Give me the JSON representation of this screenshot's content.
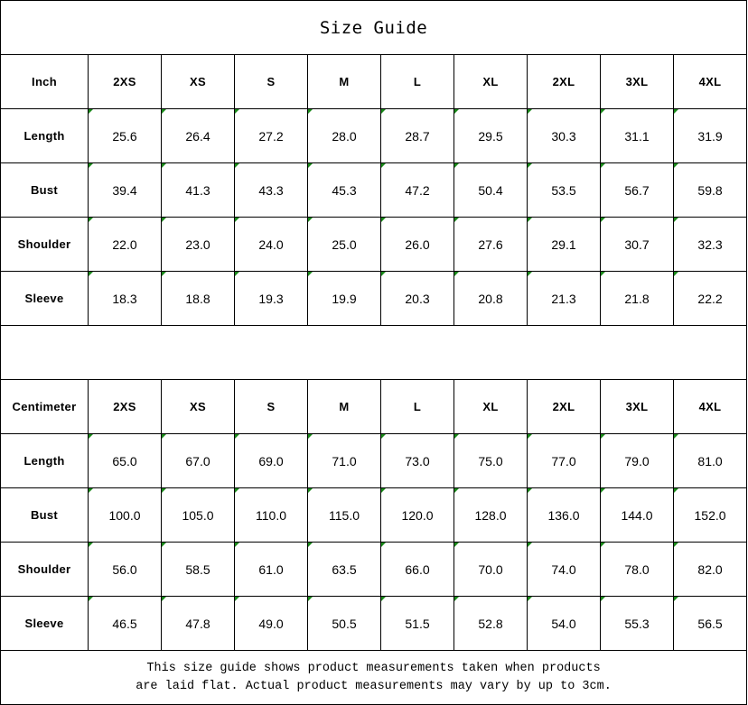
{
  "title": "Size Guide",
  "sizes": [
    "2XS",
    "XS",
    "S",
    "M",
    "L",
    "XL",
    "2XL",
    "3XL",
    "4XL"
  ],
  "indicator_color": "#1a8a1a",
  "tables": [
    {
      "unit": "Inch",
      "rows": [
        {
          "label": "Length",
          "values": [
            "25.6",
            "26.4",
            "27.2",
            "28.0",
            "28.7",
            "29.5",
            "30.3",
            "31.1",
            "31.9"
          ]
        },
        {
          "label": "Bust",
          "values": [
            "39.4",
            "41.3",
            "43.3",
            "45.3",
            "47.2",
            "50.4",
            "53.5",
            "56.7",
            "59.8"
          ]
        },
        {
          "label": "Shoulder",
          "values": [
            "22.0",
            "23.0",
            "24.0",
            "25.0",
            "26.0",
            "27.6",
            "29.1",
            "30.7",
            "32.3"
          ]
        },
        {
          "label": "Sleeve",
          "values": [
            "18.3",
            "18.8",
            "19.3",
            "19.9",
            "20.3",
            "20.8",
            "21.3",
            "21.8",
            "22.2"
          ]
        }
      ]
    },
    {
      "unit": "Centimeter",
      "rows": [
        {
          "label": "Length",
          "values": [
            "65.0",
            "67.0",
            "69.0",
            "71.0",
            "73.0",
            "75.0",
            "77.0",
            "79.0",
            "81.0"
          ]
        },
        {
          "label": "Bust",
          "values": [
            "100.0",
            "105.0",
            "110.0",
            "115.0",
            "120.0",
            "128.0",
            "136.0",
            "144.0",
            "152.0"
          ]
        },
        {
          "label": "Shoulder",
          "values": [
            "56.0",
            "58.5",
            "61.0",
            "63.5",
            "66.0",
            "70.0",
            "74.0",
            "78.0",
            "82.0"
          ]
        },
        {
          "label": "Sleeve",
          "values": [
            "46.5",
            "47.8",
            "49.0",
            "50.5",
            "51.5",
            "52.8",
            "54.0",
            "55.3",
            "56.5"
          ]
        }
      ]
    }
  ],
  "note_line1": "This size guide shows product measurements taken when products",
  "note_line2": "are laid flat. Actual product measurements may vary by up to 3cm."
}
